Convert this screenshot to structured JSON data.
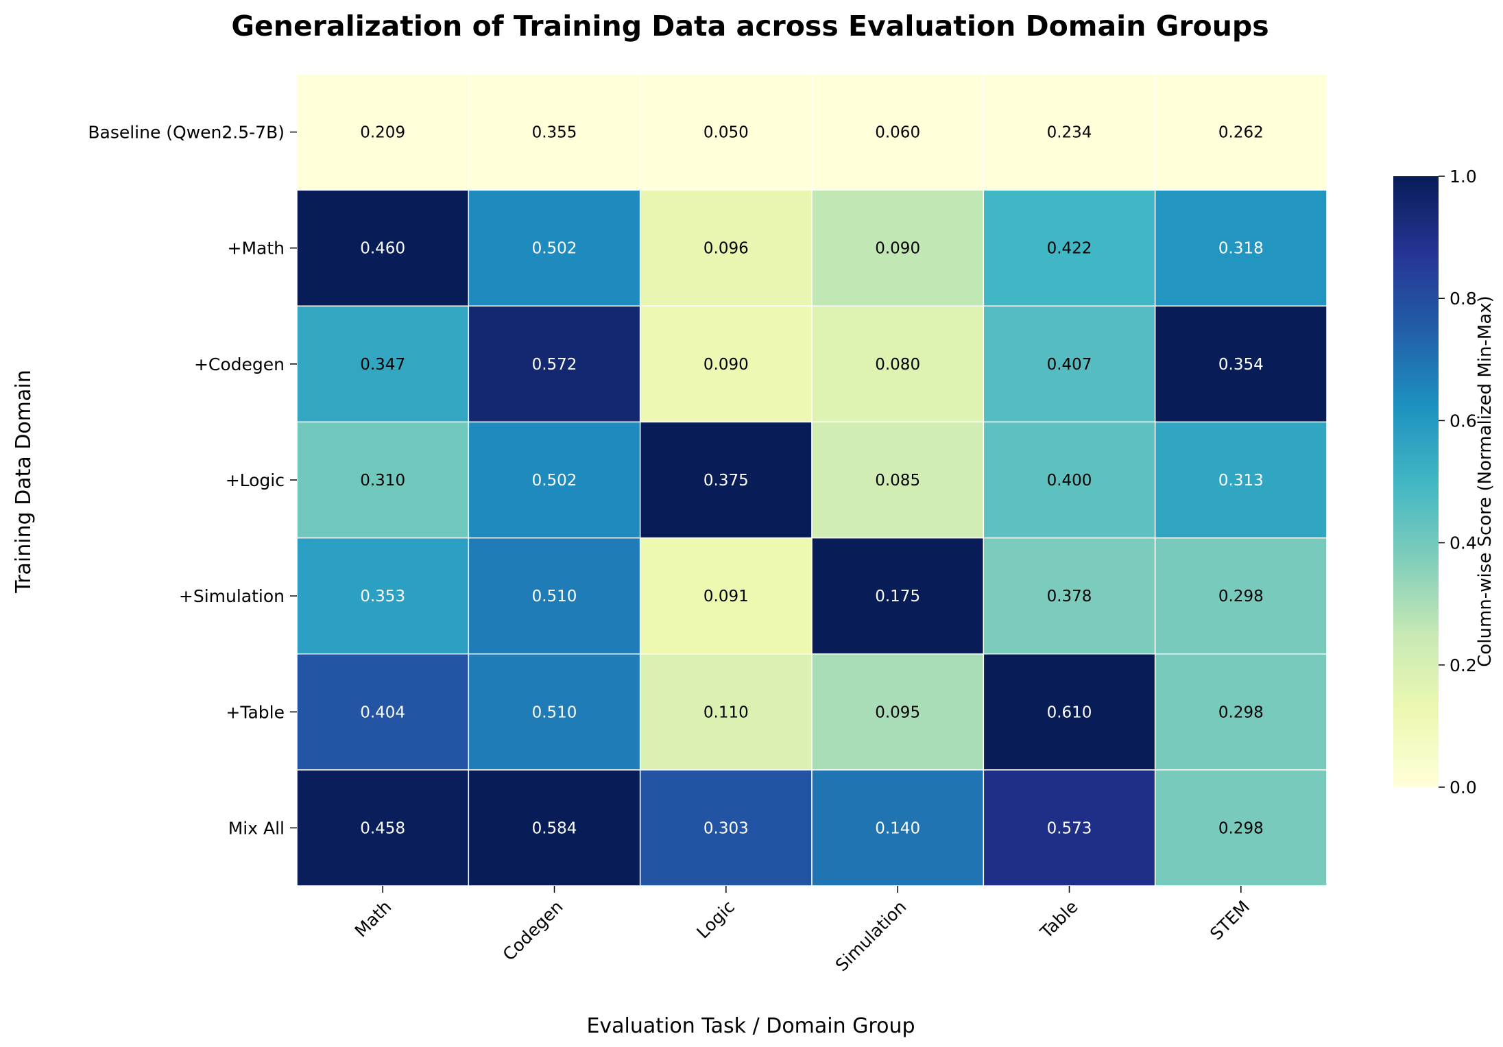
{
  "chart_data": {
    "type": "heatmap",
    "title": "Generalization of Training Data across Evaluation Domain Groups",
    "xlabel": "Evaluation Task / Domain Group",
    "ylabel": "Training Data Domain",
    "x_categories": [
      "Math",
      "Codegen",
      "Logic",
      "Simulation",
      "Table",
      "STEM"
    ],
    "y_categories": [
      "Baseline (Qwen2.5-7B)",
      "+Math",
      "+Codegen",
      "+Logic",
      "+Simulation",
      "+Table",
      "Mix All"
    ],
    "values": [
      [
        0.209,
        0.355,
        0.05,
        0.06,
        0.234,
        0.262
      ],
      [
        0.46,
        0.502,
        0.096,
        0.09,
        0.422,
        0.318
      ],
      [
        0.347,
        0.572,
        0.09,
        0.08,
        0.407,
        0.354
      ],
      [
        0.31,
        0.502,
        0.375,
        0.085,
        0.4,
        0.313
      ],
      [
        0.353,
        0.51,
        0.091,
        0.175,
        0.378,
        0.298
      ],
      [
        0.404,
        0.51,
        0.11,
        0.095,
        0.61,
        0.298
      ],
      [
        0.458,
        0.584,
        0.303,
        0.14,
        0.573,
        0.298
      ]
    ],
    "value_labels": [
      [
        "0.209",
        "0.355",
        "0.050",
        "0.060",
        "0.234",
        "0.262"
      ],
      [
        "0.460",
        "0.502",
        "0.096",
        "0.090",
        "0.422",
        "0.318"
      ],
      [
        "0.347",
        "0.572",
        "0.090",
        "0.080",
        "0.407",
        "0.354"
      ],
      [
        "0.310",
        "0.502",
        "0.375",
        "0.085",
        "0.400",
        "0.313"
      ],
      [
        "0.353",
        "0.510",
        "0.091",
        "0.175",
        "0.378",
        "0.298"
      ],
      [
        "0.404",
        "0.510",
        "0.110",
        "0.095",
        "0.610",
        "0.298"
      ],
      [
        "0.458",
        "0.584",
        "0.303",
        "0.140",
        "0.573",
        "0.298"
      ]
    ],
    "color_normalization": "column-wise min-max",
    "colormap": "YlGnBu",
    "colorbar": {
      "label": "Column-wise Score (Normalized Min-Max)",
      "range": [
        0,
        1
      ],
      "ticks": [
        "0.0",
        "0.2",
        "0.4",
        "0.6",
        "0.8",
        "1.0"
      ]
    },
    "grid": false,
    "colormap_stops": [
      "#ffffd9",
      "#edf8b1",
      "#c7e9b4",
      "#7fcdbb",
      "#41b6c4",
      "#1d91c0",
      "#225ea8",
      "#253494",
      "#081d58"
    ]
  }
}
